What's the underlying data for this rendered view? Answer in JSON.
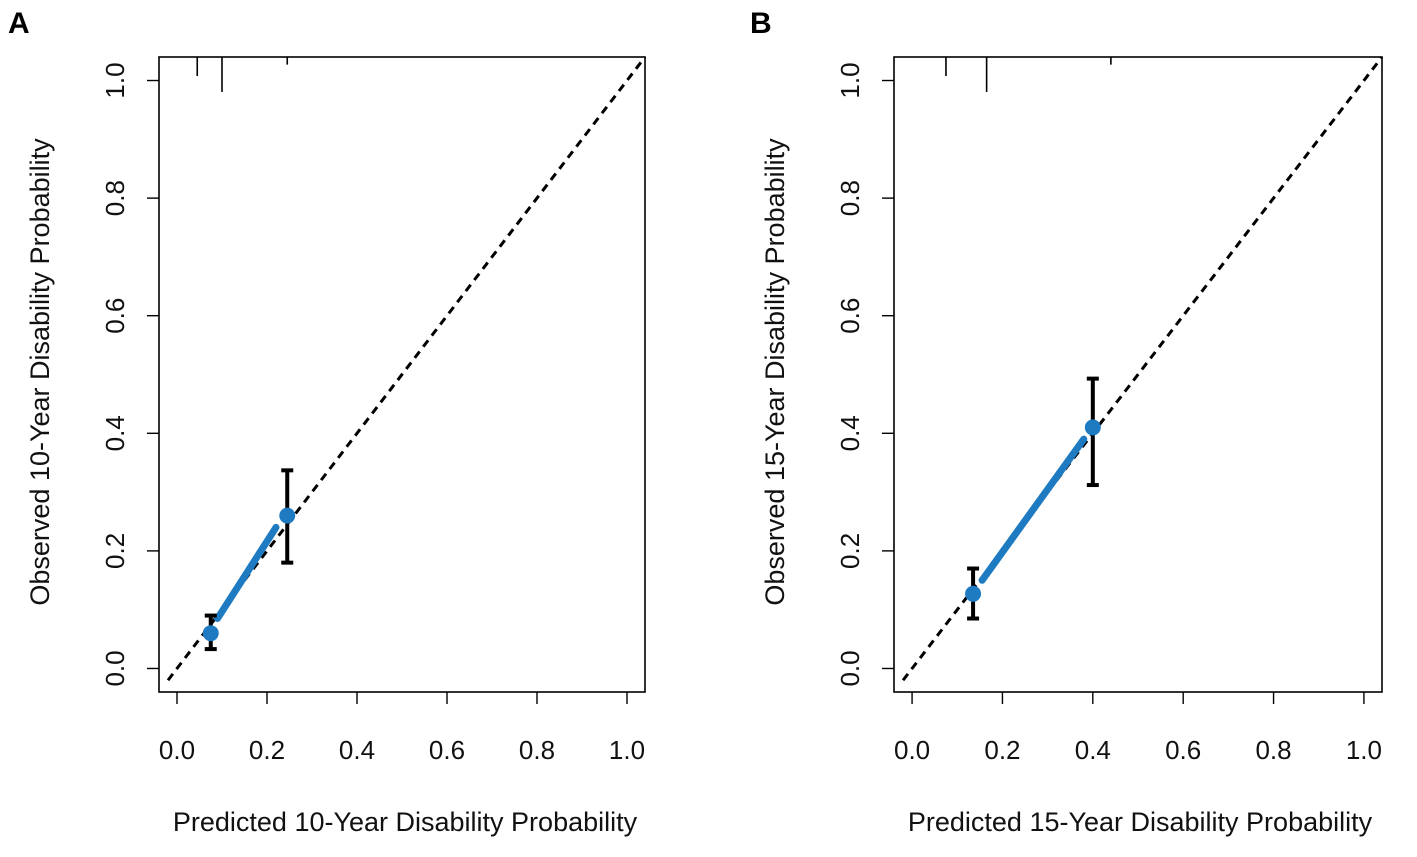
{
  "chart_data": [
    {
      "type": "scatter",
      "panel_label": "A",
      "xlabel": "Predicted 10-Year Disability Probability",
      "ylabel": "Observed 10-Year Disability Probability",
      "xlim": [
        -0.04,
        1.04
      ],
      "ylim": [
        -0.04,
        1.04
      ],
      "xticks": [
        0.0,
        0.2,
        0.4,
        0.6,
        0.8,
        1.0
      ],
      "yticks": [
        0.0,
        0.2,
        0.4,
        0.6,
        0.8,
        1.0
      ],
      "xtick_labels": [
        "0.0",
        "0.2",
        "0.4",
        "0.6",
        "0.8",
        "1.0"
      ],
      "ytick_labels": [
        "0.0",
        "0.2",
        "0.4",
        "0.6",
        "0.8",
        "1.0"
      ],
      "reference_line": {
        "name": "ideal",
        "style": "dashed",
        "color": "#000000",
        "from": [
          -0.02,
          -0.02
        ],
        "to": [
          1.04,
          1.04
        ]
      },
      "points": [
        {
          "x": 0.075,
          "y": 0.06,
          "lower": 0.033,
          "upper": 0.09
        },
        {
          "x": 0.245,
          "y": 0.26,
          "lower": 0.18,
          "upper": 0.337
        }
      ],
      "calibration_curve": {
        "color": "#1f7bc1",
        "x": [
          0.09,
          0.22
        ],
        "y": [
          0.085,
          0.24
        ]
      },
      "rug_ticks": [
        0.045,
        0.1,
        0.245
      ],
      "rug_lengths": [
        0.03,
        0.055,
        0.012
      ]
    },
    {
      "type": "scatter",
      "panel_label": "B",
      "xlabel": "Predicted 15-Year Disability Probability",
      "ylabel": "Observed 15-Year Disability Probability",
      "xlim": [
        -0.04,
        1.04
      ],
      "ylim": [
        -0.04,
        1.04
      ],
      "xticks": [
        0.0,
        0.2,
        0.4,
        0.6,
        0.8,
        1.0
      ],
      "yticks": [
        0.0,
        0.2,
        0.4,
        0.6,
        0.8,
        1.0
      ],
      "xtick_labels": [
        "0.0",
        "0.2",
        "0.4",
        "0.6",
        "0.8",
        "1.0"
      ],
      "ytick_labels": [
        "0.0",
        "0.2",
        "0.4",
        "0.6",
        "0.8",
        "1.0"
      ],
      "reference_line": {
        "name": "ideal",
        "style": "dashed",
        "color": "#000000",
        "from": [
          -0.02,
          -0.02
        ],
        "to": [
          1.04,
          1.04
        ]
      },
      "points": [
        {
          "x": 0.135,
          "y": 0.127,
          "lower": 0.085,
          "upper": 0.17
        },
        {
          "x": 0.4,
          "y": 0.41,
          "lower": 0.312,
          "upper": 0.493
        }
      ],
      "calibration_curve": {
        "color": "#1f7bc1",
        "x": [
          0.155,
          0.38
        ],
        "y": [
          0.15,
          0.39
        ]
      },
      "rug_ticks": [
        0.075,
        0.165,
        0.44
      ],
      "rug_lengths": [
        0.03,
        0.055,
        0.012
      ]
    }
  ]
}
